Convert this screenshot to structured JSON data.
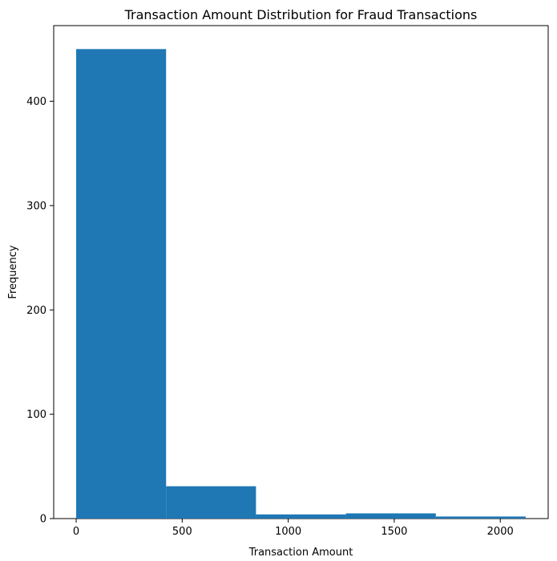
{
  "chart_data": {
    "type": "bar",
    "title": "Transaction Amount Distribution for Fraud Transactions",
    "xlabel": "Transaction Amount",
    "ylabel": "Frequency",
    "bins": [
      {
        "x0": 0,
        "x1": 424,
        "value": 450
      },
      {
        "x0": 424,
        "x1": 848,
        "value": 31
      },
      {
        "x0": 848,
        "x1": 1272,
        "value": 4
      },
      {
        "x0": 1272,
        "x1": 1696,
        "value": 5
      },
      {
        "x0": 1696,
        "x1": 2120,
        "value": 2
      }
    ],
    "xlim": [
      -106,
      2226
    ],
    "ylim": [
      0,
      472.5
    ],
    "xticks": [
      0,
      500,
      1000,
      1500,
      2000
    ],
    "yticks": [
      0,
      100,
      200,
      300,
      400
    ],
    "grid": false,
    "legend": "none",
    "bar_color": "#1f77b4"
  }
}
